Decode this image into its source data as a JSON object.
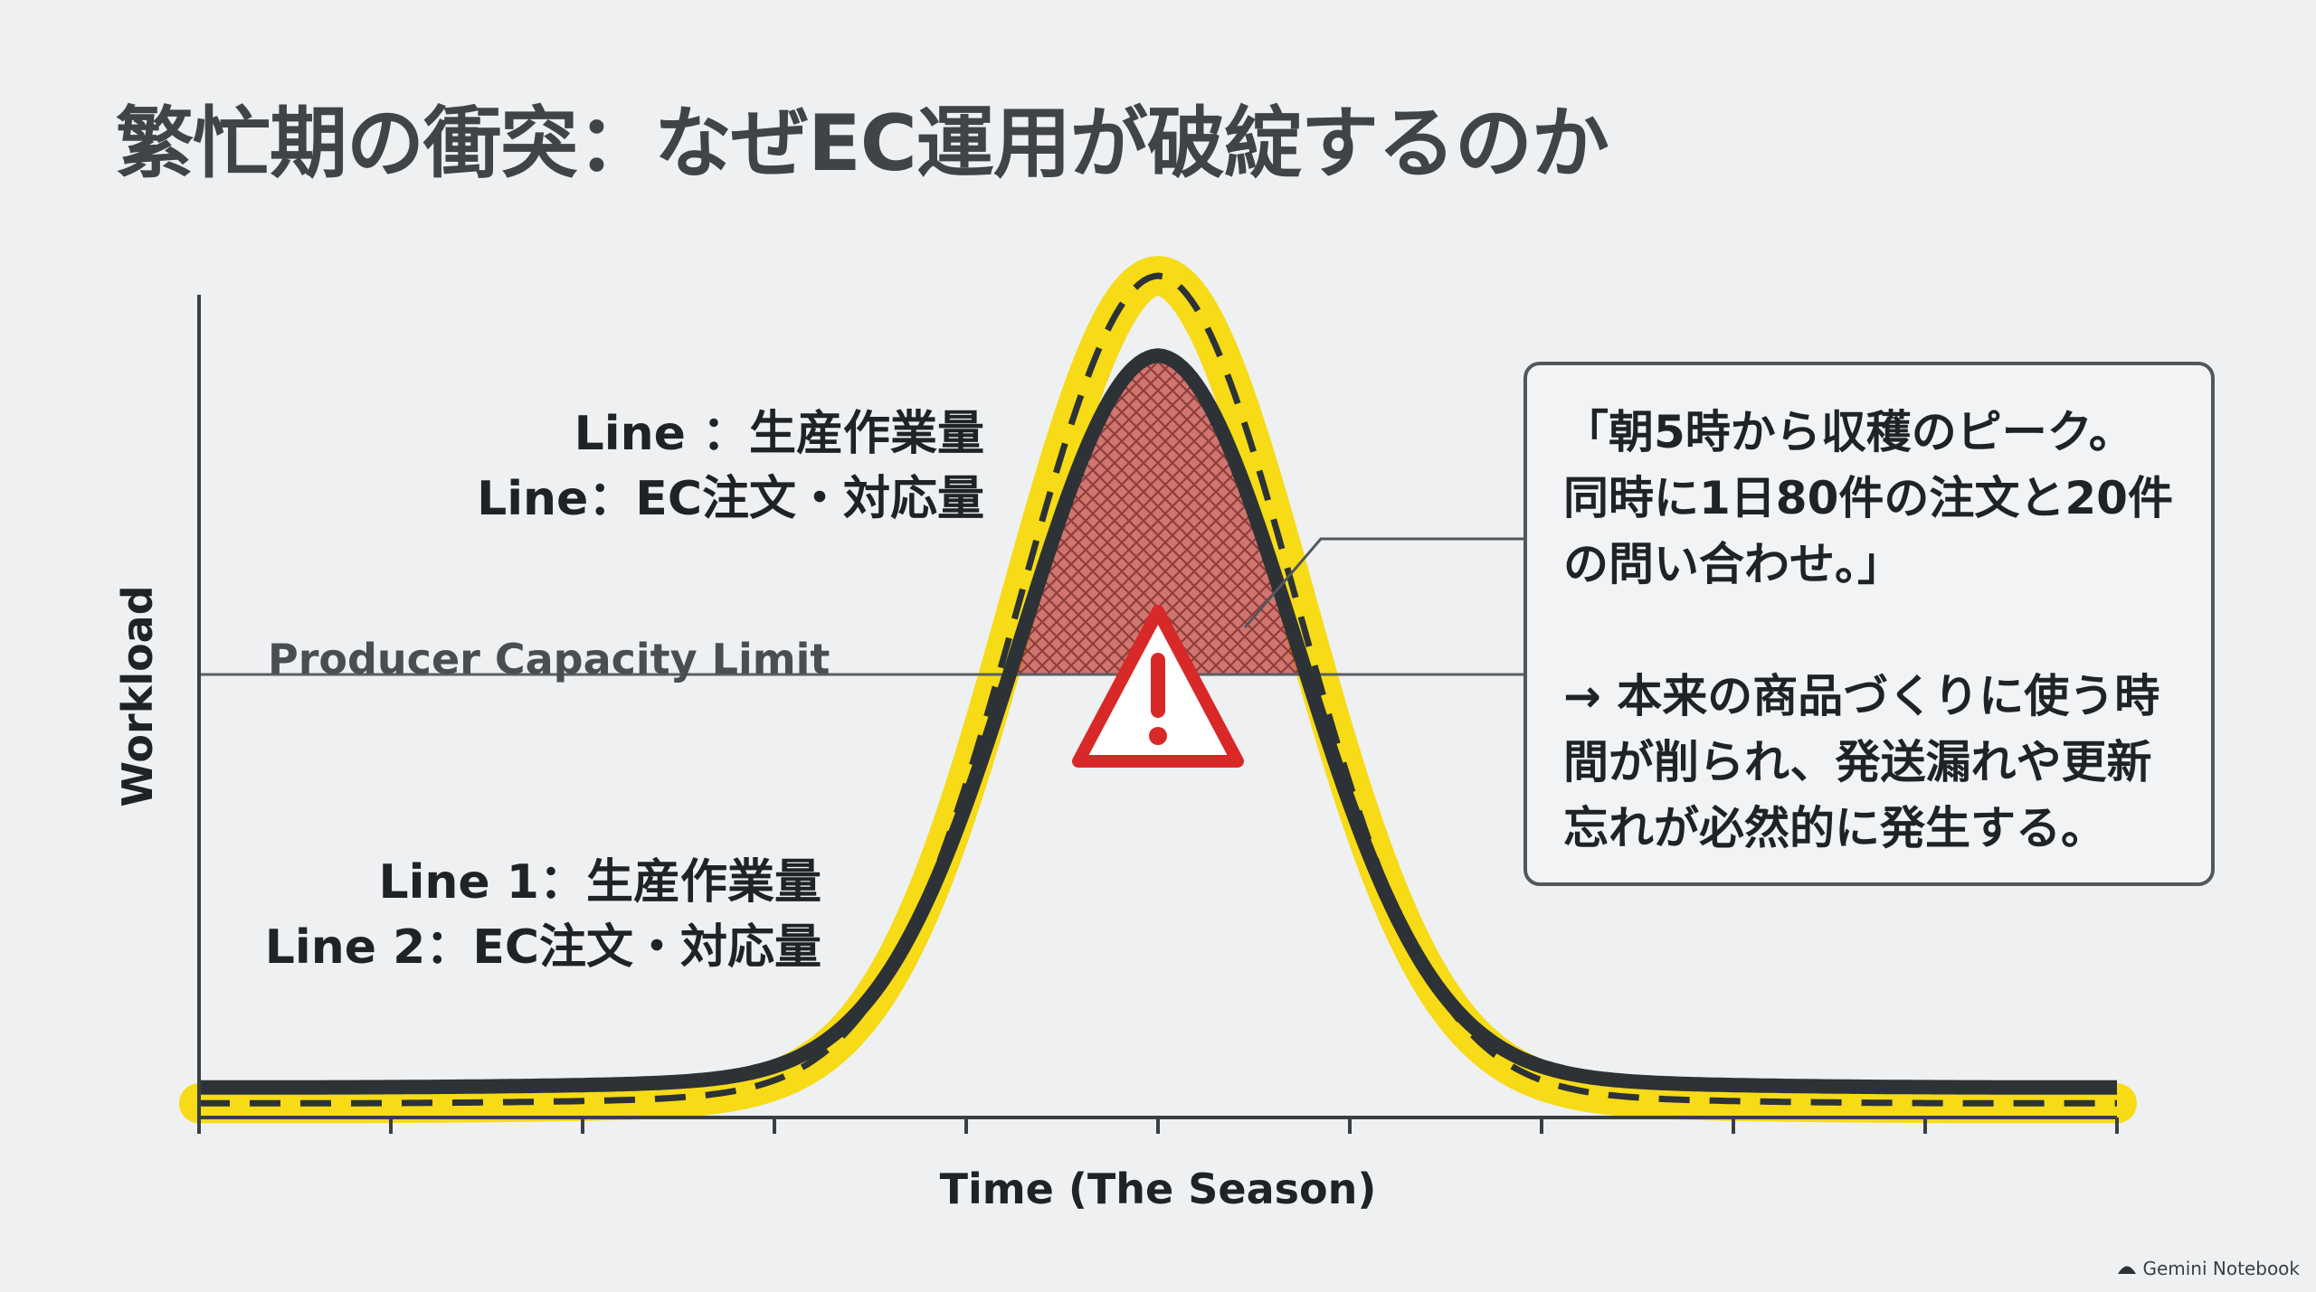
{
  "title": "繁忙期の衝突：なぜEC運用が破綻するのか",
  "chart_data": {
    "type": "line",
    "title": "繁忙期の衝突：なぜEC運用が破綻するのか",
    "xlabel": "Time (The Season)",
    "ylabel": "Workload",
    "x": [
      0,
      1,
      2,
      3,
      4,
      5,
      6,
      7,
      8,
      9,
      10
    ],
    "xlim": [
      0,
      10
    ],
    "ylim": [
      0,
      100
    ],
    "capacity_limit": {
      "label": "Producer Capacity Limit",
      "value": 50
    },
    "series": [
      {
        "name": "生産作業量",
        "style": "solid dark",
        "peak": 86,
        "peak_x": 5,
        "baseline": 3.4
      },
      {
        "name": "EC注文・対応量",
        "style": "dashed with yellow highlight",
        "peak": 95,
        "peak_x": 5,
        "baseline": 1.6
      }
    ],
    "legend_top": [
      "Line ：生産作業量",
      "Line：EC注文・対応量"
    ],
    "legend_bottom": [
      "Line 1：生産作業量",
      "Line 2：EC注文・対応量"
    ],
    "annotation": {
      "quote": "「朝5時から収穫のピーク。同時に1日80件の注文と20件の問い合わせ。」",
      "note": "→ 本来の商品づくりに使う時間が削られ、発送漏れや更新忘れが必然的に発生する。"
    },
    "grid": false,
    "x_ticks": 11
  },
  "colors": {
    "highlight": "#f5d90a",
    "line": "#2d3236",
    "warning": "#d92828",
    "overload_fill": "#a9352f"
  },
  "icons": {
    "warning": "warning-triangle-icon",
    "brand": "notebook-icon"
  },
  "brand": "Gemini Notebook"
}
